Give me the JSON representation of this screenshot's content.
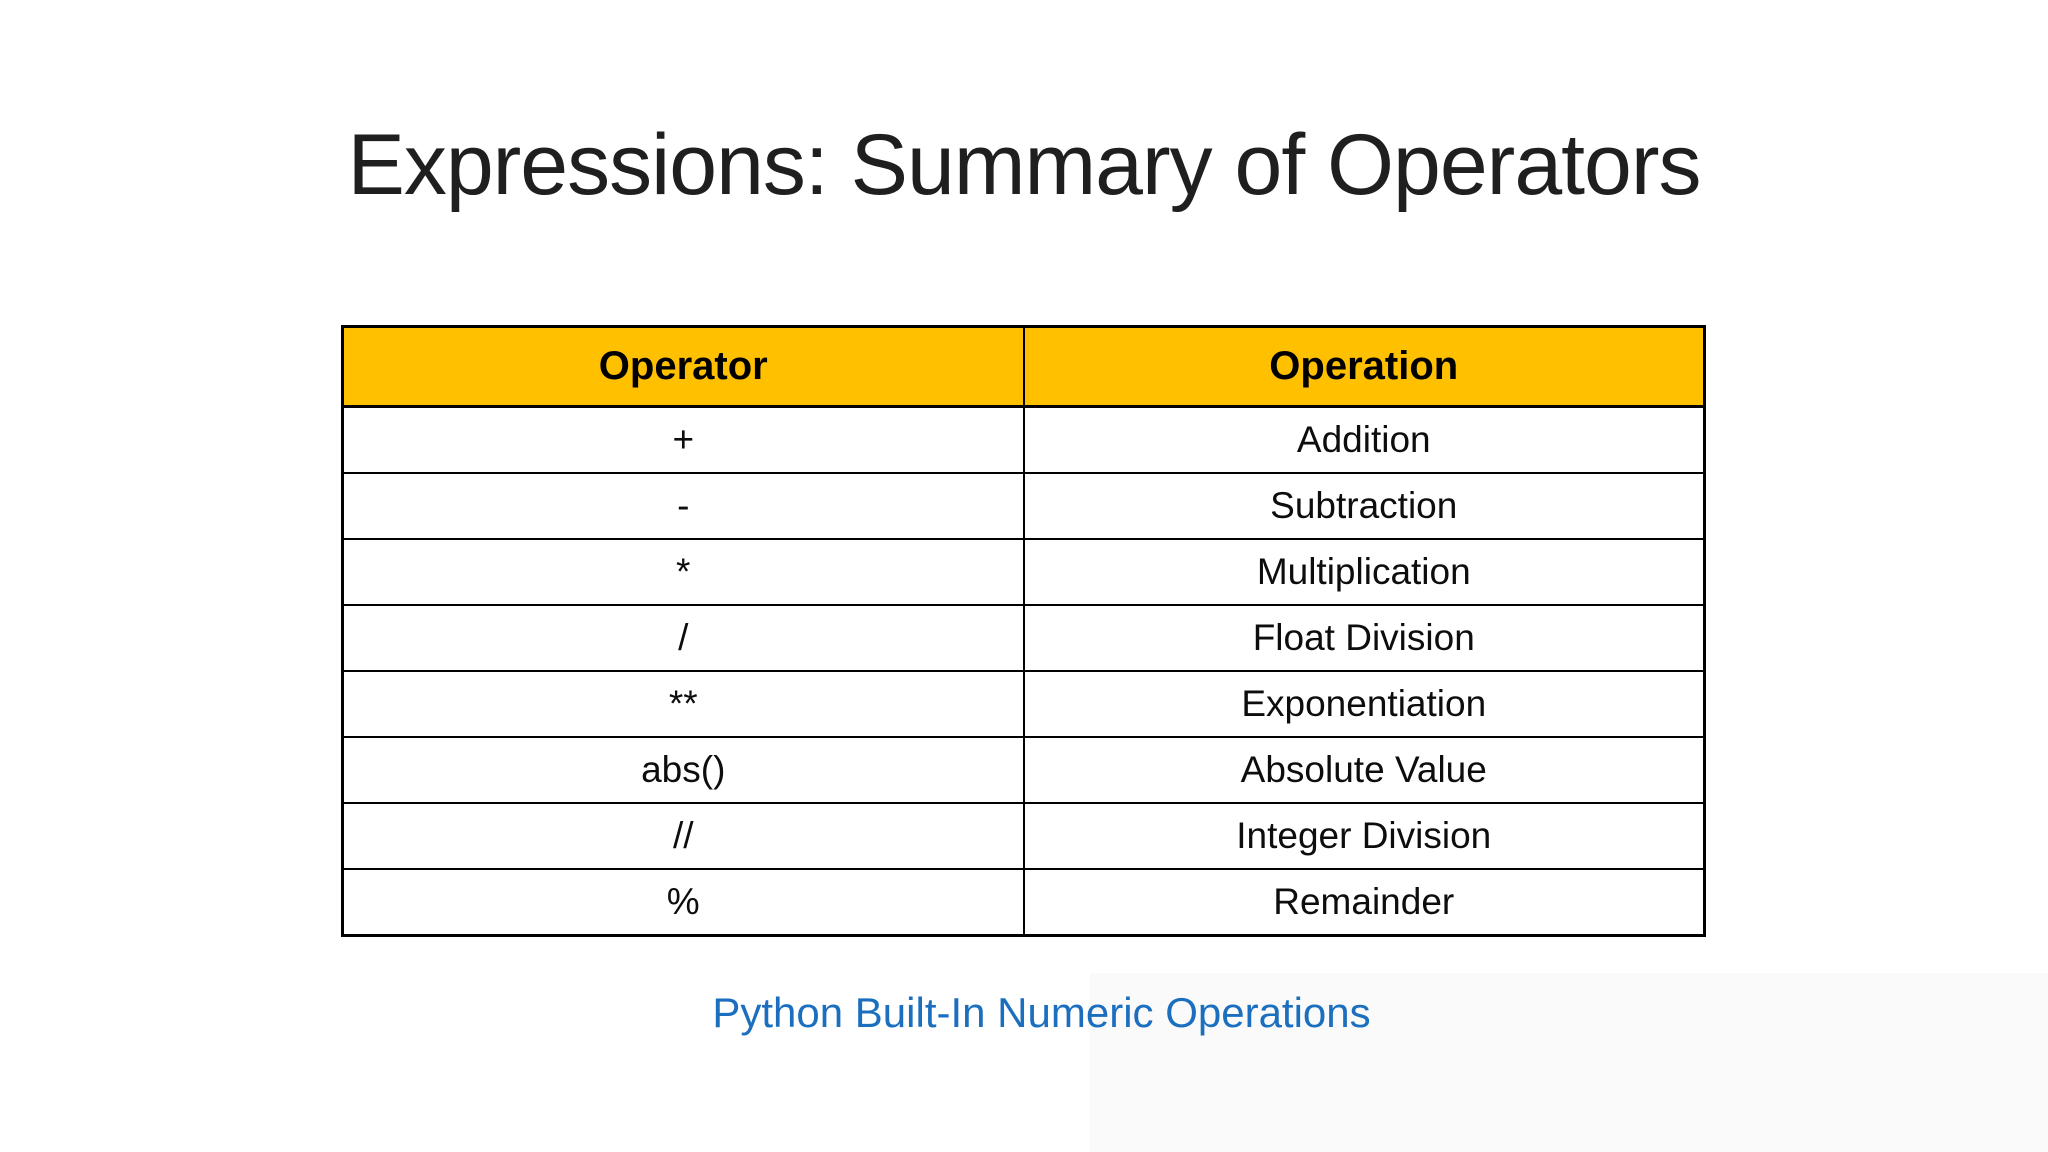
{
  "slide": {
    "title": "Expressions: Summary of Operators",
    "caption": "Python Built-In Numeric Operations"
  },
  "table": {
    "headers": [
      "Operator",
      "Operation"
    ],
    "rows": [
      {
        "operator": "+",
        "operation": "Addition"
      },
      {
        "operator": "-",
        "operation": "Subtraction"
      },
      {
        "operator": "*",
        "operation": "Multiplication"
      },
      {
        "operator": "/",
        "operation": "Float Division"
      },
      {
        "operator": "**",
        "operation": "Exponentiation"
      },
      {
        "operator": "abs()",
        "operation": "Absolute Value"
      },
      {
        "operator": "//",
        "operation": "Integer Division"
      },
      {
        "operator": "%",
        "operation": "Remainder"
      }
    ]
  },
  "colors": {
    "header_background": "#FFC000",
    "table_border": "#000000",
    "caption_link": "#1B6FBE",
    "title_text": "#1F1F1F",
    "page_background": "#FFFFFF"
  }
}
